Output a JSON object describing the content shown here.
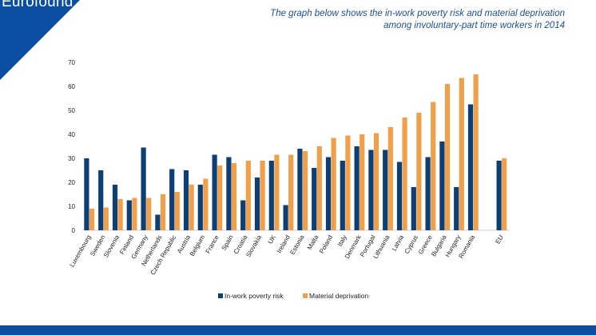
{
  "brand": {
    "name": "Eurofound"
  },
  "caption": {
    "line1": "The graph below shows the in-work poverty risk and material deprivation",
    "line2": "among involuntary-part time workers in 2014"
  },
  "colors": {
    "series1": "#0d3f77",
    "series2": "#f0a04a",
    "brand": "#0b4ea2"
  },
  "chart_data": {
    "type": "bar",
    "title": "",
    "xlabel": "",
    "ylabel": "",
    "ylim": [
      0,
      70
    ],
    "yticks": [
      0,
      10,
      20,
      30,
      40,
      50,
      60,
      70
    ],
    "legend_position": "bottom",
    "categories": [
      "Luxembourg",
      "Sweden",
      "Slovenia",
      "Finland",
      "Germany",
      "Netherlands",
      "Czech Republic",
      "Austria",
      "Belgium",
      "France",
      "Spain",
      "Croatia",
      "Slovakia",
      "UK",
      "Ireland",
      "Estonia",
      "Malta",
      "Poland",
      "Italy",
      "Denmark",
      "Portugal",
      "Lithuania",
      "Latvia",
      "Cyprus",
      "Greece",
      "Bulgaria",
      "Hungary",
      "Romania",
      "",
      "EU"
    ],
    "series": [
      {
        "name": "In-work poverty risk",
        "values": [
          30,
          25,
          19,
          12.5,
          34.5,
          6.5,
          25.5,
          25,
          19,
          31.5,
          30.5,
          12.5,
          22,
          29,
          10.5,
          34,
          26,
          30.5,
          29,
          35,
          33.5,
          33.5,
          28.5,
          18,
          30.5,
          37,
          18,
          52.5,
          null,
          29
        ]
      },
      {
        "name": "Material deprivation",
        "values": [
          9,
          9.5,
          13,
          13.5,
          13.5,
          15,
          16,
          19,
          21.5,
          27,
          28,
          29,
          29,
          31.5,
          31.5,
          33,
          35,
          38.5,
          39.5,
          40,
          40.5,
          43,
          47,
          49,
          53.5,
          61,
          63.5,
          65,
          null,
          30
        ]
      }
    ]
  }
}
